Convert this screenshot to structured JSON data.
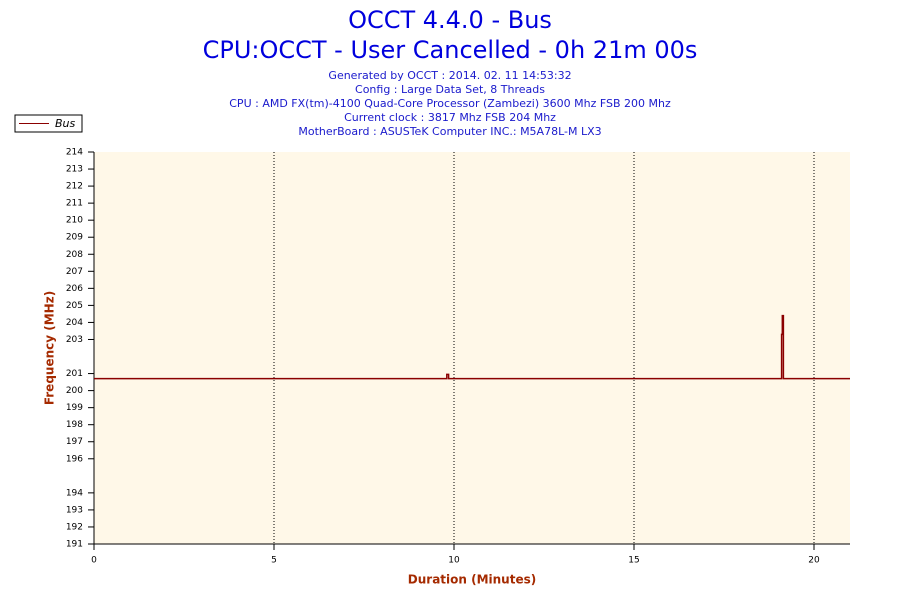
{
  "chart_data": {
    "type": "line",
    "title": "OCCT 4.4.0 - Bus",
    "subtitle": "CPU:OCCT - User Cancelled - 0h 21m 00s",
    "info": [
      "Generated by OCCT : 2014. 02. 11 14:53:32",
      "Config : Large Data Set, 8 Threads",
      "CPU : AMD FX(tm)-4100 Quad-Core Processor (Zambezi) 3600 Mhz FSB 200 Mhz",
      "Current clock : 3817 Mhz FSB 204 Mhz",
      "MotherBoard : ASUSTeK Computer INC.: M5A78L-M LX3"
    ],
    "x_label": "Duration (Minutes)",
    "y_label": "Frequency (MHz)",
    "x": [
      0,
      9.8,
      9.8,
      9.85,
      9.85,
      19.1,
      19.1,
      19.12,
      19.12,
      19.15,
      19.15,
      21
    ],
    "series": [
      {
        "name": "Bus",
        "color": "#8b0000",
        "values": [
          200.7,
          200.7,
          200.95,
          200.95,
          200.7,
          200.7,
          203.3,
          203.3,
          204.4,
          204.4,
          200.7,
          200.7
        ]
      }
    ],
    "xlim": [
      0,
      21
    ],
    "xticks": [
      0,
      5,
      10,
      15,
      20
    ],
    "ylim": [
      191,
      214
    ],
    "yticks": [
      191,
      192,
      193,
      194,
      196,
      197,
      198,
      199,
      200,
      201,
      203,
      204,
      205,
      206,
      207,
      208,
      209,
      210,
      211,
      212,
      213,
      214
    ],
    "grid": true,
    "legend": "top-left"
  }
}
